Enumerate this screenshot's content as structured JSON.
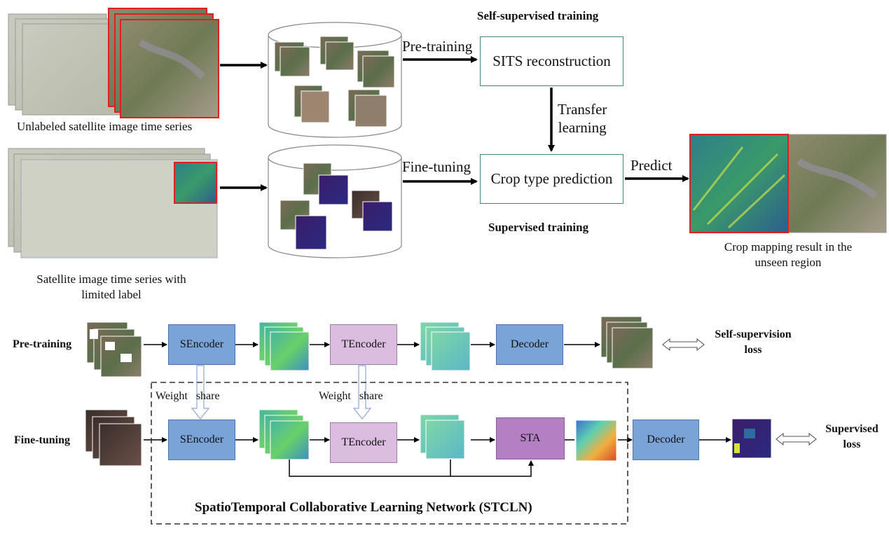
{
  "top": {
    "self_supervised_title": "Self-supervised training",
    "supervised_title": "Supervised training",
    "pretraining_arrow_label": "Pre-training",
    "finetuning_arrow_label": "Fine-tuning",
    "sits_box": "SITS reconstruction",
    "crop_box": "Crop type prediction",
    "transfer_line1": "Transfer",
    "transfer_line2": "learning",
    "predict_label": "Predict",
    "unlabeled_caption": "Unlabeled satellite image time series",
    "limited_caption_line1": "Satellite image time series with",
    "limited_caption_line2": "limited label",
    "result_caption_line1": "Crop mapping result in the",
    "result_caption_line2": "unseen region"
  },
  "bottom": {
    "pretraining_row_label": "Pre-training",
    "finetuning_row_label": "Fine-tuning",
    "sencoder": "SEncoder",
    "tencoder": "TEncoder",
    "decoder": "Decoder",
    "sta": "STA",
    "weight_share_1": "Weight   share",
    "weight_share_2": "Weight   share",
    "self_supervision_loss_line1": "Self-supervision",
    "self_supervision_loss_line2": "loss",
    "supervised_loss_line1": "Supervised",
    "supervised_loss_line2": "loss",
    "network_title": "SpatioTemporal Collaborative Learning Network (STCLN)"
  },
  "colors": {
    "teal_border": "#3a8b8c",
    "encoder_blue": "#7aa4d8",
    "tencoder_lilac": "#dbbde0",
    "sta_violet": "#b57fc4",
    "highlight_red": "#e02020"
  }
}
